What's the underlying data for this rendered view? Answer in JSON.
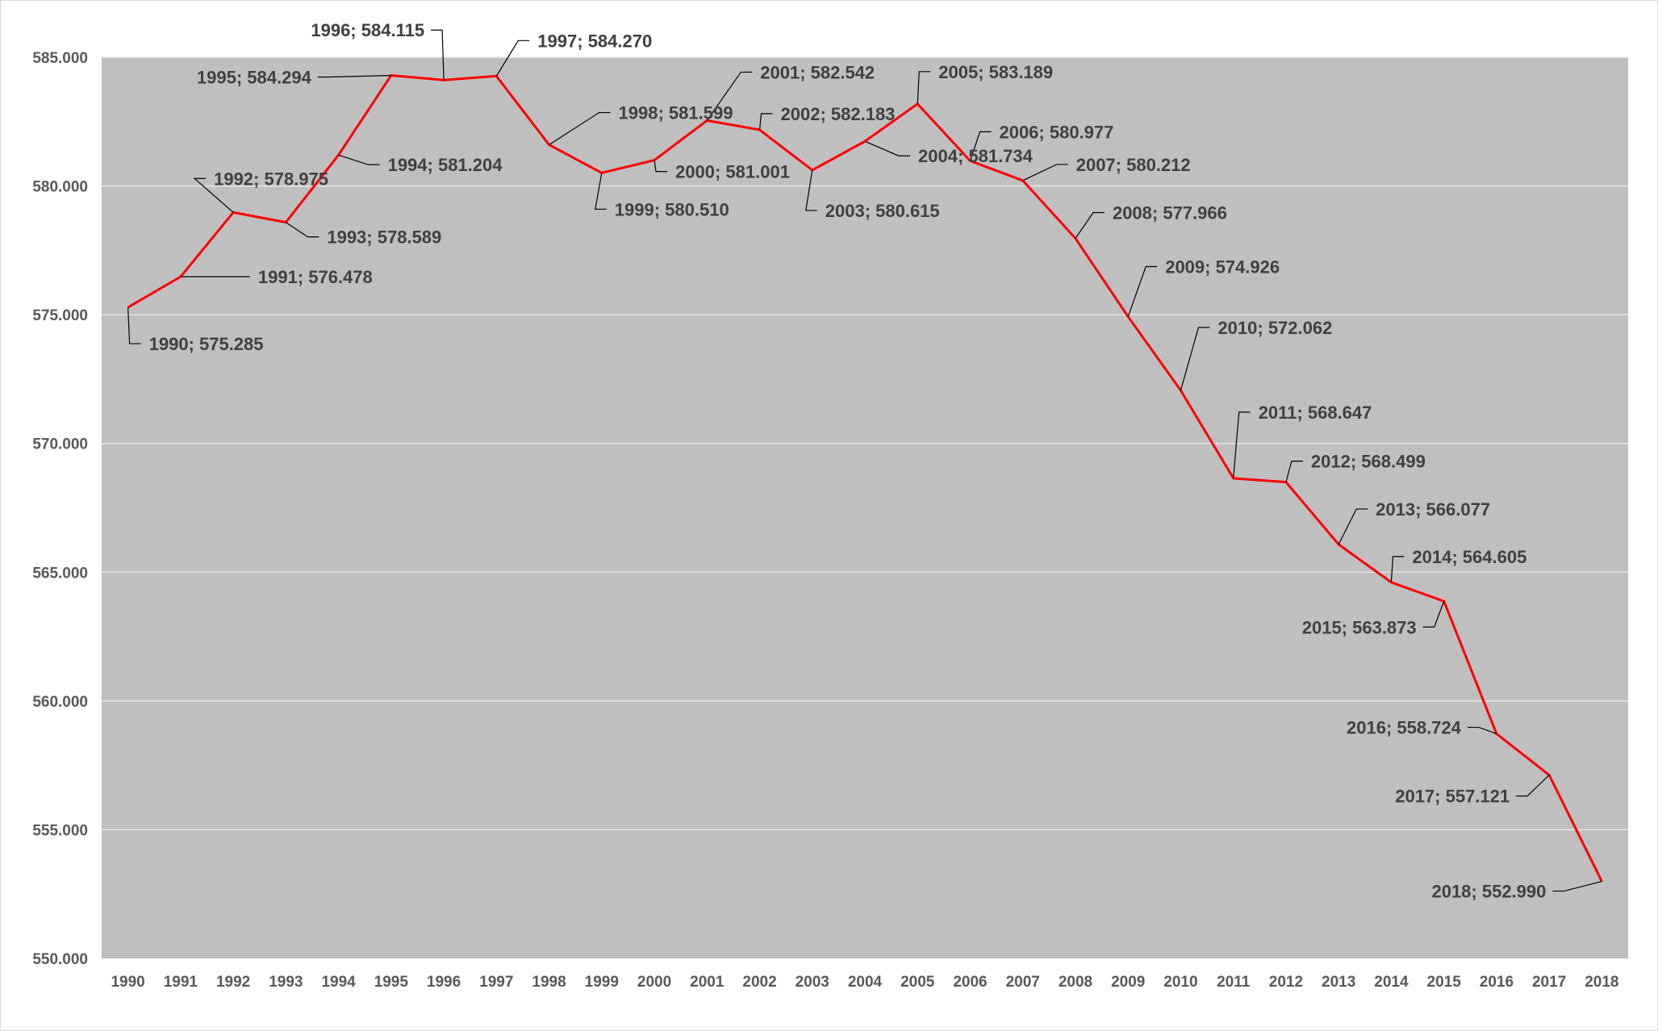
{
  "colors": {
    "plot_background": "#bfbfbf",
    "gridline": "#e6e6e6",
    "series_line": "#ff0000",
    "leader_line": "#000000",
    "tick_text": "#595959",
    "label_text": "#404040"
  },
  "chart_data": {
    "type": "line",
    "title": "",
    "xlabel": "",
    "ylabel": "",
    "ylim": [
      550000,
      585000
    ],
    "y_ticks": [
      550000,
      555000,
      560000,
      565000,
      570000,
      575000,
      580000,
      585000
    ],
    "y_tick_labels": [
      "550.000",
      "555.000",
      "560.000",
      "565.000",
      "570.000",
      "575.000",
      "580.000",
      "585.000"
    ],
    "grid": "horizontal",
    "legend": "none",
    "categories": [
      "1990",
      "1991",
      "1992",
      "1993",
      "1994",
      "1995",
      "1996",
      "1997",
      "1998",
      "1999",
      "2000",
      "2001",
      "2002",
      "2003",
      "2004",
      "2005",
      "2006",
      "2007",
      "2008",
      "2009",
      "2010",
      "2011",
      "2012",
      "2013",
      "2014",
      "2015",
      "2016",
      "2017",
      "2018"
    ],
    "series": [
      {
        "values": [
          575285,
          576478,
          578975,
          578589,
          581204,
          584294,
          584115,
          584270,
          581599,
          580510,
          581001,
          582542,
          582183,
          580615,
          581734,
          583189,
          580977,
          580212,
          577966,
          574926,
          572062,
          568647,
          568499,
          566077,
          564605,
          563873,
          558724,
          557121,
          552990
        ],
        "data_labels": [
          "1990; 575.285",
          "1991; 576.478",
          "1992; 578.975",
          "1993; 578.589",
          "1994; 581.204",
          "1995; 584.294",
          "1996; 584.115",
          "1997; 584.270",
          "1998; 581.599",
          "1999; 580.510",
          "2000; 581.001",
          "2001; 582.542",
          "2002; 582.183",
          "2003; 580.615",
          "2004; 581.734",
          "2005; 583.189",
          "2006; 580.977",
          "2007; 580.212",
          "2008; 577.966",
          "2009; 574.926",
          "2010; 572.062",
          "2011; 568.647",
          "2012; 568.499",
          "2013; 566.077",
          "2014; 564.605",
          "2015; 563.873",
          "2016; 558.724",
          "2017; 557.121",
          "2018; 552.990"
        ]
      }
    ]
  }
}
